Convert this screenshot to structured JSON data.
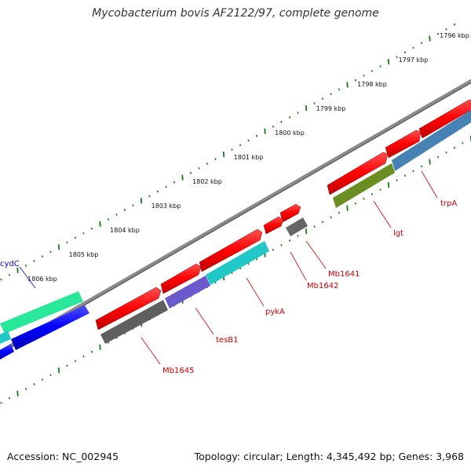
{
  "title": "Mycobacterium bovis AF2122/97, complete genome",
  "footer": {
    "accession": "Accession: NC_002945",
    "summary": "Topology: circular; Length: 4,345,492 bp; Genes: 3,968"
  },
  "ruler": {
    "tick_color": "#1a7a1a",
    "labels": [
      "1796 kbp",
      "1797 kbp",
      "1798 kbp",
      "1799 kbp",
      "1800 kbp",
      "1801 kbp",
      "1802 kbp",
      "1803 kbp",
      "1804 kbp",
      "1805 kbp",
      "1806 kbp"
    ]
  },
  "backbone_color": "#8a8a8a",
  "genes": [
    {
      "name": "trpA",
      "label_color": "#cc0000"
    },
    {
      "name": "lgt",
      "label_color": "#cc0000"
    },
    {
      "name": "Mb1641",
      "label_color": "#cc0000"
    },
    {
      "name": "Mb1642",
      "label_color": "#cc0000"
    },
    {
      "name": "pykA",
      "label_color": "#cc0000"
    },
    {
      "name": "tesB1",
      "label_color": "#cc0000"
    },
    {
      "name": "Mb1645",
      "label_color": "#cc0000"
    },
    {
      "name": "cydC",
      "label_color": "#0000cc"
    }
  ],
  "feature_colors": {
    "forward_cds": "#ff0000",
    "blue_cds": "#0000ff",
    "steel": "#4682b4",
    "olive": "#6b8e23",
    "gray": "#666666",
    "cyan": "#22c8c8",
    "slate": "#6a5acd",
    "spring": "#2ae89a"
  }
}
